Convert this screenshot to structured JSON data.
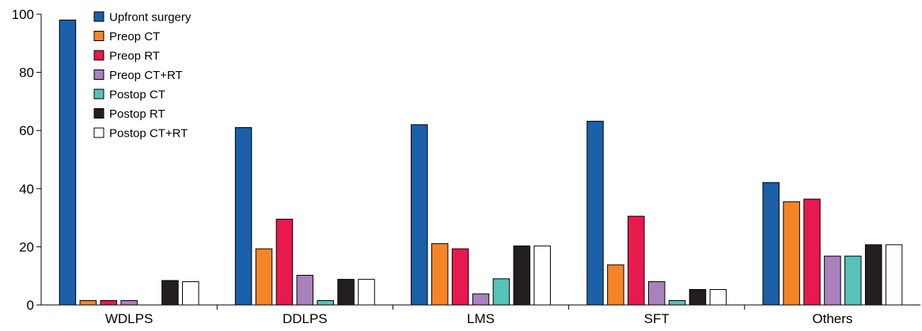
{
  "chart_data": {
    "type": "bar",
    "title": "",
    "xlabel": "",
    "ylabel": "",
    "ylim": [
      0,
      100
    ],
    "yticks": [
      0,
      20,
      40,
      60,
      80,
      100
    ],
    "grid": false,
    "legend_position": "top-left",
    "categories": [
      "WDLPS",
      "DDLPS",
      "LMS",
      "SFT",
      "Others"
    ],
    "series": [
      {
        "name": "Upfront surgery",
        "color": "#1a5fa8",
        "values": [
          98,
          61,
          62,
          63.2,
          42.1
        ]
      },
      {
        "name": "Preop CT",
        "color": "#f58426",
        "values": [
          1.5,
          19.3,
          21.1,
          13.8,
          35.5
        ]
      },
      {
        "name": "Preop RT",
        "color": "#e8194f",
        "values": [
          1.5,
          29.5,
          19.3,
          30.5,
          36.4
        ]
      },
      {
        "name": "Preop CT+RT",
        "color": "#a981bd",
        "values": [
          1.5,
          10.2,
          3.8,
          8,
          16.8
        ]
      },
      {
        "name": "Postop CT",
        "color": "#56c2b8",
        "values": [
          0,
          1.5,
          9,
          1.5,
          16.8
        ]
      },
      {
        "name": "Postop RT",
        "color": "#231f20",
        "values": [
          8.4,
          8.8,
          20.3,
          5.3,
          20.7
        ]
      },
      {
        "name": "Postop CT+RT",
        "color": "#ffffff",
        "values": [
          8,
          8.8,
          20.3,
          5.3,
          20.7
        ]
      }
    ]
  }
}
